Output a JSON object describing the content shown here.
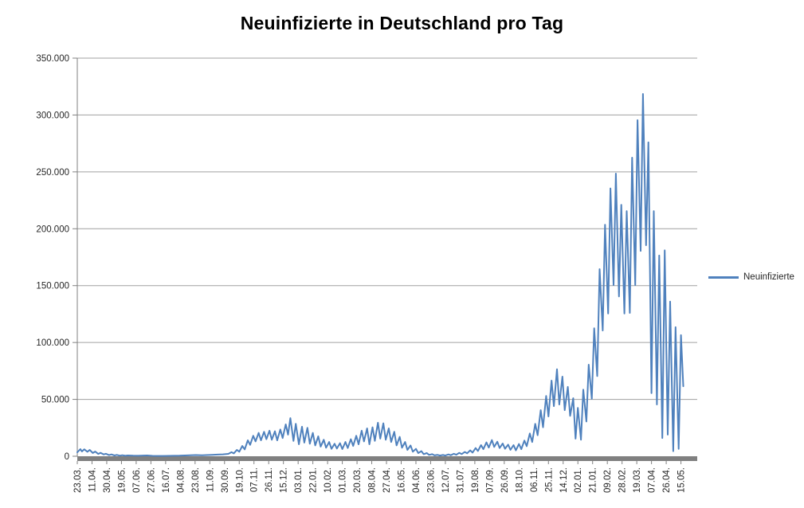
{
  "chart_data": {
    "type": "line",
    "title": "Neuinfizierte in Deutschland pro Tag",
    "legend_position": "right",
    "grid": "horizontal",
    "x_axis_span_days": 800,
    "x_tick_interval_days": 19,
    "x_tick_labels": [
      "23.03.",
      "11.04.",
      "30.04.",
      "19.05.",
      "07.06.",
      "27.06.",
      "16.07.",
      "04.08.",
      "23.08.",
      "11.09.",
      "30.09.",
      "19.10.",
      "07.11.",
      "26.11.",
      "15.12.",
      "03.01.",
      "22.01.",
      "10.02.",
      "01.03.",
      "20.03.",
      "08.04.",
      "27.04.",
      "16.05.",
      "04.06.",
      "23.06.",
      "12.07.",
      "31.07.",
      "19.08.",
      "07.09.",
      "26.09.",
      "18.10.",
      "06.11.",
      "25.11.",
      "14.12.",
      "02.01.",
      "21.01.",
      "09.02.",
      "28.02.",
      "19.03.",
      "07.04.",
      "26.04.",
      "15.05."
    ],
    "ylim": [
      0,
      350000
    ],
    "y_ticks": [
      0,
      50000,
      100000,
      150000,
      200000,
      250000,
      300000,
      350000
    ],
    "y_tick_labels": [
      "0",
      "50.000",
      "100.000",
      "150.000",
      "200.000",
      "250.000",
      "300.000",
      "350.000"
    ],
    "grid_color": "#A0A0A0",
    "axis_color": "#808080",
    "tick_text_color": "#262626",
    "series": [
      {
        "name": "Neuinfizierte",
        "color": "#4F81BD",
        "points": [
          [
            0,
            3500
          ],
          [
            2,
            4800
          ],
          [
            4,
            6200
          ],
          [
            6,
            4200
          ],
          [
            9,
            6100
          ],
          [
            13,
            3900
          ],
          [
            16,
            5500
          ],
          [
            20,
            2900
          ],
          [
            23,
            4100
          ],
          [
            27,
            2000
          ],
          [
            30,
            3000
          ],
          [
            34,
            1600
          ],
          [
            37,
            2200
          ],
          [
            41,
            1000
          ],
          [
            44,
            1600
          ],
          [
            48,
            700
          ],
          [
            51,
            1200
          ],
          [
            55,
            500
          ],
          [
            58,
            900
          ],
          [
            62,
            400
          ],
          [
            65,
            700
          ],
          [
            72,
            500
          ],
          [
            79,
            400
          ],
          [
            86,
            600
          ],
          [
            90,
            700
          ],
          [
            97,
            350
          ],
          [
            104,
            300
          ],
          [
            111,
            260
          ],
          [
            118,
            350
          ],
          [
            125,
            420
          ],
          [
            132,
            520
          ],
          [
            139,
            720
          ],
          [
            146,
            920
          ],
          [
            153,
            1050
          ],
          [
            160,
            850
          ],
          [
            167,
            1050
          ],
          [
            174,
            1250
          ],
          [
            181,
            1450
          ],
          [
            188,
            1650
          ],
          [
            195,
            2100
          ],
          [
            199,
            3600
          ],
          [
            202,
            2500
          ],
          [
            206,
            5600
          ],
          [
            209,
            4000
          ],
          [
            213,
            9000
          ],
          [
            216,
            6000
          ],
          [
            220,
            14000
          ],
          [
            223,
            10000
          ],
          [
            227,
            18000
          ],
          [
            230,
            13000
          ],
          [
            234,
            20500
          ],
          [
            237,
            14000
          ],
          [
            241,
            21500
          ],
          [
            244,
            15000
          ],
          [
            248,
            22500
          ],
          [
            251,
            14500
          ],
          [
            255,
            22000
          ],
          [
            258,
            14000
          ],
          [
            262,
            23500
          ],
          [
            265,
            16000
          ],
          [
            269,
            28000
          ],
          [
            272,
            19000
          ],
          [
            275,
            33500
          ],
          [
            279,
            13500
          ],
          [
            282,
            28500
          ],
          [
            286,
            10500
          ],
          [
            290,
            26000
          ],
          [
            293,
            12000
          ],
          [
            297,
            25000
          ],
          [
            300,
            11000
          ],
          [
            304,
            20500
          ],
          [
            307,
            9500
          ],
          [
            311,
            17500
          ],
          [
            314,
            8500
          ],
          [
            318,
            14500
          ],
          [
            321,
            7500
          ],
          [
            325,
            12500
          ],
          [
            328,
            6500
          ],
          [
            332,
            11000
          ],
          [
            335,
            6800
          ],
          [
            339,
            11500
          ],
          [
            342,
            6300
          ],
          [
            346,
            12500
          ],
          [
            349,
            7200
          ],
          [
            353,
            15000
          ],
          [
            356,
            9000
          ],
          [
            360,
            18000
          ],
          [
            363,
            10500
          ],
          [
            367,
            22500
          ],
          [
            370,
            13000
          ],
          [
            374,
            24500
          ],
          [
            377,
            10500
          ],
          [
            381,
            25500
          ],
          [
            384,
            13500
          ],
          [
            388,
            29500
          ],
          [
            391,
            15500
          ],
          [
            395,
            29000
          ],
          [
            398,
            14500
          ],
          [
            402,
            24500
          ],
          [
            405,
            12500
          ],
          [
            409,
            21500
          ],
          [
            412,
            9500
          ],
          [
            416,
            17000
          ],
          [
            419,
            7500
          ],
          [
            423,
            12500
          ],
          [
            426,
            5500
          ],
          [
            430,
            9500
          ],
          [
            433,
            4000
          ],
          [
            437,
            6500
          ],
          [
            440,
            2800
          ],
          [
            444,
            4500
          ],
          [
            447,
            1800
          ],
          [
            451,
            2800
          ],
          [
            454,
            1200
          ],
          [
            458,
            1800
          ],
          [
            461,
            800
          ],
          [
            465,
            1200
          ],
          [
            468,
            600
          ],
          [
            472,
            1100
          ],
          [
            475,
            650
          ],
          [
            479,
            1600
          ],
          [
            482,
            900
          ],
          [
            486,
            2200
          ],
          [
            489,
            1300
          ],
          [
            493,
            3000
          ],
          [
            496,
            1900
          ],
          [
            500,
            3800
          ],
          [
            503,
            2600
          ],
          [
            507,
            5200
          ],
          [
            510,
            3200
          ],
          [
            514,
            7200
          ],
          [
            517,
            4600
          ],
          [
            521,
            9800
          ],
          [
            524,
            6200
          ],
          [
            528,
            12200
          ],
          [
            531,
            7600
          ],
          [
            535,
            14200
          ],
          [
            538,
            8200
          ],
          [
            542,
            12800
          ],
          [
            545,
            7200
          ],
          [
            549,
            11200
          ],
          [
            552,
            6600
          ],
          [
            556,
            10200
          ],
          [
            559,
            5600
          ],
          [
            563,
            9800
          ],
          [
            566,
            5200
          ],
          [
            570,
            10800
          ],
          [
            573,
            6200
          ],
          [
            577,
            13800
          ],
          [
            580,
            8800
          ],
          [
            584,
            20000
          ],
          [
            587,
            12500
          ],
          [
            591,
            28500
          ],
          [
            594,
            18500
          ],
          [
            598,
            40500
          ],
          [
            601,
            25500
          ],
          [
            605,
            53000
          ],
          [
            608,
            35000
          ],
          [
            612,
            66500
          ],
          [
            615,
            44000
          ],
          [
            619,
            76500
          ],
          [
            622,
            45500
          ],
          [
            626,
            70000
          ],
          [
            629,
            40500
          ],
          [
            633,
            61000
          ],
          [
            636,
            35500
          ],
          [
            640,
            51000
          ],
          [
            643,
            15500
          ],
          [
            646,
            42500
          ],
          [
            650,
            14500
          ],
          [
            653,
            58500
          ],
          [
            657,
            30500
          ],
          [
            660,
            80500
          ],
          [
            664,
            50500
          ],
          [
            667,
            112500
          ],
          [
            671,
            70500
          ],
          [
            674,
            164500
          ],
          [
            678,
            110500
          ],
          [
            681,
            203500
          ],
          [
            685,
            125500
          ],
          [
            688,
            235500
          ],
          [
            692,
            150500
          ],
          [
            695,
            248500
          ],
          [
            699,
            140500
          ],
          [
            702,
            221000
          ],
          [
            706,
            125500
          ],
          [
            709,
            215500
          ],
          [
            713,
            126000
          ],
          [
            716,
            262500
          ],
          [
            720,
            150500
          ],
          [
            723,
            295500
          ],
          [
            727,
            180500
          ],
          [
            730,
            318500
          ],
          [
            734,
            185500
          ],
          [
            737,
            276000
          ],
          [
            741,
            55500
          ],
          [
            744,
            215500
          ],
          [
            748,
            45500
          ],
          [
            751,
            176500
          ],
          [
            755,
            16000
          ],
          [
            758,
            181000
          ],
          [
            762,
            19000
          ],
          [
            765,
            136000
          ],
          [
            769,
            4500
          ],
          [
            772,
            113500
          ],
          [
            776,
            6500
          ],
          [
            779,
            106500
          ],
          [
            782,
            61500
          ]
        ]
      }
    ]
  }
}
